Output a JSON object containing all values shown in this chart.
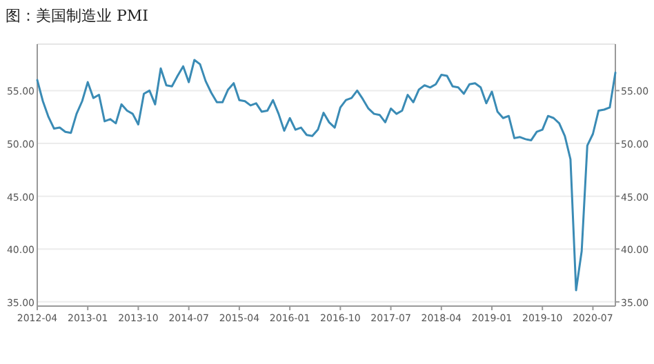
{
  "chart_data": {
    "type": "line",
    "title": "图：美国制造业 PMI",
    "categories": [
      "2012-04",
      null,
      null,
      null,
      null,
      null,
      null,
      null,
      null,
      "2013-01",
      null,
      null,
      null,
      null,
      null,
      null,
      null,
      null,
      "2013-10",
      null,
      null,
      null,
      null,
      null,
      null,
      null,
      null,
      "2014-07",
      null,
      null,
      null,
      null,
      null,
      null,
      null,
      null,
      "2015-04",
      null,
      null,
      null,
      null,
      null,
      null,
      null,
      null,
      "2016-01",
      null,
      null,
      null,
      null,
      null,
      null,
      null,
      null,
      "2016-10",
      null,
      null,
      null,
      null,
      null,
      null,
      null,
      null,
      "2017-07",
      null,
      null,
      null,
      null,
      null,
      null,
      null,
      null,
      "2018-04",
      null,
      null,
      null,
      null,
      null,
      null,
      null,
      null,
      "2019-01",
      null,
      null,
      null,
      null,
      null,
      null,
      null,
      null,
      "2019-10",
      null,
      null,
      null,
      null,
      null,
      null,
      null,
      null,
      "2020-07",
      null,
      null,
      null,
      null
    ],
    "series": [
      {
        "color": "#3a8bb5",
        "values": [
          56.0,
          54.0,
          52.5,
          51.4,
          51.5,
          51.1,
          51.0,
          52.8,
          54.0,
          55.8,
          54.3,
          54.6,
          52.1,
          52.3,
          51.9,
          53.7,
          53.1,
          52.8,
          51.8,
          54.7,
          55.0,
          53.7,
          57.1,
          55.5,
          55.4,
          56.4,
          57.3,
          55.8,
          57.9,
          57.5,
          55.9,
          54.8,
          53.9,
          53.9,
          55.1,
          55.7,
          54.1,
          54.0,
          53.6,
          53.8,
          53.0,
          53.1,
          54.1,
          52.8,
          51.2,
          52.4,
          51.3,
          51.5,
          50.8,
          50.7,
          51.3,
          52.9,
          52.0,
          51.5,
          53.4,
          54.1,
          54.3,
          55.0,
          54.2,
          53.3,
          52.8,
          52.7,
          52.0,
          53.3,
          52.8,
          53.1,
          54.6,
          53.9,
          55.1,
          55.5,
          55.3,
          55.6,
          56.5,
          56.4,
          55.4,
          55.3,
          54.7,
          55.6,
          55.7,
          55.3,
          53.8,
          54.9,
          53.0,
          52.4,
          52.6,
          50.5,
          50.6,
          50.4,
          50.3,
          51.1,
          51.3,
          52.6,
          52.4,
          51.9,
          50.7,
          48.5,
          36.1,
          39.8,
          49.8,
          50.9,
          53.1,
          53.2,
          53.4,
          56.7
        ]
      }
    ],
    "ylim": [
      34.6,
      59.4
    ],
    "yticks": [
      {
        "value": 35,
        "label": "35.00"
      },
      {
        "value": 40,
        "label": "40.00"
      },
      {
        "value": 45,
        "label": "45.00"
      },
      {
        "value": 50,
        "label": "50.00"
      },
      {
        "value": 55,
        "label": "55.00"
      }
    ],
    "y2lim": [
      34.6,
      59.4
    ],
    "y2ticks": [
      {
        "value": 35,
        "label": "35.00"
      },
      {
        "value": 40,
        "label": "40.00"
      },
      {
        "value": 45,
        "label": "45.00"
      },
      {
        "value": 50,
        "label": "50.00"
      },
      {
        "value": 55,
        "label": "55.00"
      }
    ],
    "grid": "y",
    "marker": "none",
    "line_style": "solid"
  }
}
